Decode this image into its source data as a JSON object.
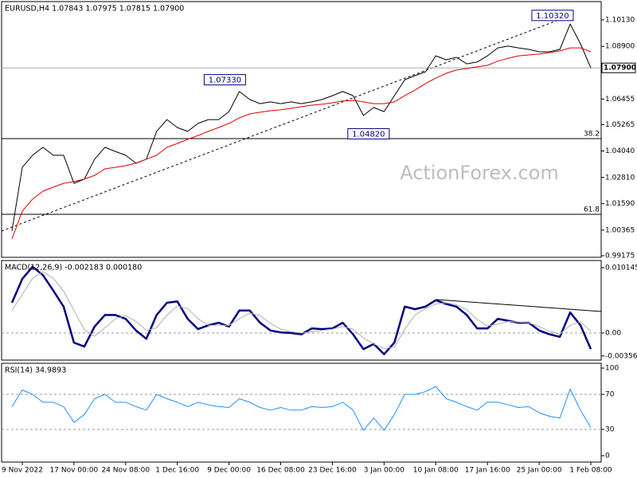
{
  "chart_data": [
    {
      "type": "line",
      "title": "EURUSD,H4  1.07843 1.07975 1.07815 1.07900",
      "watermark": "ActionForex.com",
      "x": [
        -1,
        0,
        1,
        2,
        3,
        4,
        5,
        6,
        7,
        8,
        9,
        10,
        11,
        12,
        13,
        14,
        15,
        16,
        17,
        18,
        19,
        20,
        21,
        22,
        23,
        24,
        25,
        26,
        27,
        28,
        29,
        30,
        31,
        32,
        33,
        34,
        35,
        36,
        37,
        38,
        39,
        40,
        41,
        42,
        43,
        44,
        45,
        46,
        47,
        48,
        49,
        50,
        51,
        52,
        53,
        54,
        55
      ],
      "xlim": [
        -2,
        56
      ],
      "ylim": [
        0.991,
        1.1098
      ],
      "yticks": [
        {
          "value": 1.1013,
          "label": "1.10130"
        },
        {
          "value": 1.089,
          "label": "1.08900"
        },
        {
          "value": 1.06455,
          "label": "1.06455"
        },
        {
          "value": 1.05265,
          "label": "1.05265"
        },
        {
          "value": 1.0404,
          "label": "1.04040"
        },
        {
          "value": 1.0281,
          "label": "1.02810"
        },
        {
          "value": 1.0159,
          "label": "1.01590"
        },
        {
          "value": 1.00365,
          "label": "1.00365"
        },
        {
          "value": 0.99175,
          "label": "0.99175"
        }
      ],
      "series": [
        {
          "color": "#000000",
          "values": [
            1.0033,
            1.0328,
            1.0384,
            1.0421,
            1.0384,
            1.0384,
            1.0254,
            1.0273,
            1.0366,
            1.0421,
            1.0402,
            1.0384,
            1.0347,
            1.0366,
            1.0495,
            1.055,
            1.0513,
            1.0495,
            1.0532,
            1.055,
            1.055,
            1.0587,
            1.068,
            1.0643,
            1.0624,
            1.0632,
            1.0624,
            1.0632,
            1.0624,
            1.0632,
            1.0643,
            1.0661,
            1.068,
            1.0661,
            1.0569,
            1.0606,
            1.0587,
            1.0661,
            1.0735,
            1.0754,
            1.0772,
            1.0846,
            1.0828,
            1.0839,
            1.0809,
            1.0817,
            1.0846,
            1.0883,
            1.0891,
            1.0883,
            1.0876,
            1.0865,
            1.0865,
            1.0876,
            1.0994,
            1.0902,
            1.079
          ]
        },
        {
          "color": "#e00000",
          "values": [
            0.9995,
            1.0125,
            1.018,
            1.0217,
            1.0236,
            1.0254,
            1.0262,
            1.0273,
            1.0291,
            1.0321,
            1.0328,
            1.0336,
            1.0347,
            1.0366,
            1.0384,
            1.0421,
            1.0439,
            1.0458,
            1.0476,
            1.0495,
            1.0513,
            1.0532,
            1.0558,
            1.0576,
            1.0584,
            1.0591,
            1.0595,
            1.0602,
            1.061,
            1.0617,
            1.0621,
            1.0628,
            1.0636,
            1.0639,
            1.0632,
            1.0624,
            1.0624,
            1.0632,
            1.0661,
            1.0687,
            1.0717,
            1.0743,
            1.0765,
            1.078,
            1.0787,
            1.0795,
            1.0802,
            1.0821,
            1.0835,
            1.0846,
            1.085,
            1.0854,
            1.0861,
            1.0869,
            1.0883,
            1.0883,
            1.0865
          ]
        }
      ],
      "current": {
        "value": 1.079,
        "label": "1.07900"
      },
      "levels": [
        {
          "name": "38.2",
          "value": 1.04616
        },
        {
          "name": "61.8",
          "value": 1.011
        }
      ],
      "annotations": [
        {
          "label": "1.07330",
          "x": 21.6,
          "value": 1.0733
        },
        {
          "label": "1.04820",
          "x": 35.5,
          "value": 1.0482
        },
        {
          "label": "1.10320",
          "x": 53.3,
          "value": 1.1032
        }
      ]
    },
    {
      "type": "line",
      "title": "MACD(12,26,9) -0.002183 0.000180",
      "x": [
        -1,
        0,
        1,
        2,
        3,
        4,
        5,
        6,
        7,
        8,
        9,
        10,
        11,
        12,
        13,
        14,
        15,
        16,
        17,
        18,
        19,
        20,
        21,
        22,
        23,
        24,
        25,
        26,
        27,
        28,
        29,
        30,
        31,
        32,
        33,
        34,
        35,
        36,
        37,
        38,
        39,
        40,
        41,
        42,
        43,
        44,
        45,
        46,
        47,
        48,
        49,
        50,
        51,
        52,
        53,
        54,
        55
      ],
      "xlim": [
        -2,
        56
      ],
      "ylim": [
        -0.00421,
        0.01126
      ],
      "yticks": [
        0.010145,
        {
          "value": 0,
          "label": "0.00"
        },
        -0.003563
      ],
      "levels": [
        0
      ],
      "series": [
        {
          "color": "#000080",
          "width": 2.5,
          "values": [
            0.0047,
            0.0084,
            0.0103,
            0.009,
            0.0066,
            0.0041,
            -0.0015,
            -0.0021,
            0.001,
            0.0028,
            0.0028,
            0.0022,
            0.0004,
            -0.0009,
            0.0028,
            0.0047,
            0.0049,
            0.0022,
            0.0006,
            0.0012,
            0.0016,
            0.001,
            0.0035,
            0.0035,
            0.0016,
            0.0004,
            0.0001,
            0,
            -0.0002,
            0.0007,
            0.0006,
            0.0007,
            0.0016,
            -0.0002,
            -0.0025,
            -0.0017,
            -0.0033,
            -0.0015,
            0.0041,
            0.0037,
            0.0041,
            0.0051,
            0.0045,
            0.0041,
            0.0028,
            0.0007,
            0.0007,
            0.0022,
            0.0019,
            0.0016,
            0.0016,
            0.0004,
            -0.0002,
            -0.0006,
            0.0032,
            0.0012,
            -0.0025
          ]
        },
        {
          "color": "#b0b0b0",
          "width": 1,
          "values": [
            0.0035,
            0.006,
            0.0085,
            0.0095,
            0.0085,
            0.0065,
            0.0035,
            0.0005,
            -0.0005,
            0.0008,
            0.0022,
            0.0027,
            0.0018,
            0.0004,
            0.0008,
            0.0028,
            0.0042,
            0.0038,
            0.0022,
            0.0012,
            0.0012,
            0.0012,
            0.0022,
            0.0031,
            0.0027,
            0.0015,
            0.0006,
            0.0002,
            0,
            0.0002,
            0.0004,
            0.0006,
            0.001,
            0.0006,
            -0.0008,
            -0.0017,
            -0.0024,
            -0.0022,
            0.0006,
            0.0028,
            0.0038,
            0.0045,
            0.0047,
            0.0044,
            0.0036,
            0.0021,
            0.0011,
            0.0014,
            0.0018,
            0.0017,
            0.0016,
            0.001,
            0.0003,
            -0.0002,
            0.0012,
            0.0017,
            0.0003
          ]
        }
      ]
    },
    {
      "type": "line",
      "title": "RSI(14) 34.9893",
      "x": [
        -1,
        0,
        1,
        2,
        3,
        4,
        5,
        6,
        7,
        8,
        9,
        10,
        11,
        12,
        13,
        14,
        15,
        16,
        17,
        18,
        19,
        20,
        21,
        22,
        23,
        24,
        25,
        26,
        27,
        28,
        29,
        30,
        31,
        32,
        33,
        34,
        35,
        36,
        37,
        38,
        39,
        40,
        41,
        42,
        43,
        44,
        45,
        46,
        47,
        48,
        49,
        50,
        51,
        52,
        53,
        54,
        55
      ],
      "xlim": [
        -2,
        56
      ],
      "ylim": [
        -7.3,
        105.5
      ],
      "yticks": [
        100,
        70,
        30,
        0
      ],
      "levels": [
        70,
        30
      ],
      "xticks": [
        {
          "value": 0,
          "label": "9 Nov 2022"
        },
        {
          "value": 5,
          "label": "17 Nov 00:00"
        },
        {
          "value": 10,
          "label": "24 Nov 08:00"
        },
        {
          "value": 15,
          "label": "1 Dec 16:00"
        },
        {
          "value": 20,
          "label": "9 Dec 00:00"
        },
        {
          "value": 25,
          "label": "16 Dec 08:00"
        },
        {
          "value": 30,
          "label": "23 Dec 16:00"
        },
        {
          "value": 35,
          "label": "3 Jan 00:00"
        },
        {
          "value": 40,
          "label": "10 Jan 08:00"
        },
        {
          "value": 45,
          "label": "17 Jan 16:00"
        },
        {
          "value": 50,
          "label": "25 Jan 00:00"
        },
        {
          "value": 55,
          "label": "1 Feb 08:00"
        }
      ],
      "series": [
        {
          "color": "#1e90ff",
          "width": 1,
          "values": [
            56,
            75,
            70,
            61,
            61,
            56,
            38,
            47,
            65,
            70,
            61,
            61,
            56,
            52,
            70,
            65,
            61,
            56,
            61,
            58,
            56,
            55,
            65,
            61,
            55,
            52,
            55,
            52,
            52,
            56,
            55,
            56,
            61,
            52,
            29,
            43,
            29,
            47,
            70,
            70,
            73,
            79,
            65,
            61,
            56,
            52,
            61,
            61,
            58,
            55,
            56,
            49,
            45,
            43,
            76,
            52,
            32
          ]
        }
      ]
    }
  ]
}
